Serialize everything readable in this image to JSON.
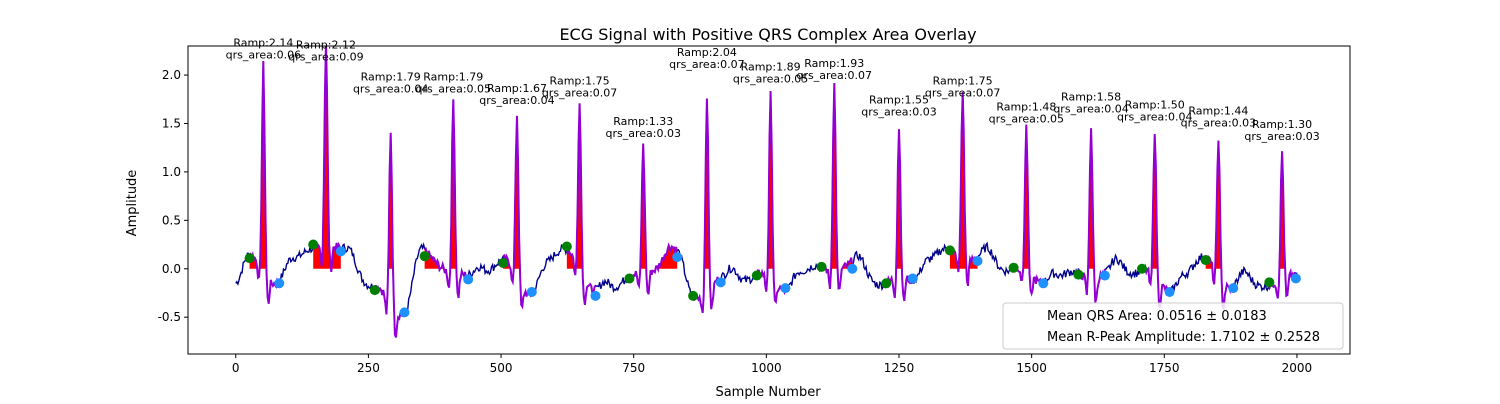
{
  "chart_data": {
    "type": "line",
    "title": "ECG Signal with Positive QRS Complex Area Overlay",
    "xlabel": "Sample Number",
    "ylabel": "Amplitude",
    "xlim": [
      -90,
      2100
    ],
    "ylim": [
      -0.88,
      2.3
    ],
    "x_ticks": [
      0,
      250,
      500,
      750,
      1000,
      1250,
      1500,
      1750,
      2000
    ],
    "y_ticks": [
      -0.5,
      0.0,
      0.5,
      1.0,
      1.5,
      2.0
    ],
    "grid": false,
    "legend_position": "lower-right",
    "legend_entries": [
      "Mean QRS Area: 0.0516 ± 0.0183",
      "Mean R-Peak Amplitude: 1.7102 ± 0.2528"
    ],
    "colors": {
      "signal": "#00008b",
      "qrs_segment": "#9400d3",
      "qrs_area": "#ff0000",
      "q_point": "#008000",
      "s_point": "#1e90ff"
    },
    "beats": [
      {
        "r_x": 52,
        "r_amp": 2.14,
        "qrs_area": 0.06,
        "q_x": 26,
        "q_y": 0.11,
        "s_x": 82,
        "s_y": -0.15
      },
      {
        "r_x": 170,
        "r_amp": 2.12,
        "qrs_area": 0.09,
        "q_x": 146,
        "q_y": 0.25,
        "s_x": 198,
        "s_y": 0.18
      },
      {
        "r_x": 292,
        "r_amp": 1.79,
        "qrs_area": 0.04,
        "q_x": 262,
        "q_y": -0.22,
        "s_x": 318,
        "s_y": -0.45
      },
      {
        "r_x": 410,
        "r_amp": 1.79,
        "qrs_area": 0.05,
        "q_x": 356,
        "q_y": 0.13,
        "s_x": 438,
        "s_y": -0.11
      },
      {
        "r_x": 530,
        "r_amp": 1.67,
        "qrs_area": 0.04,
        "q_x": 504,
        "q_y": 0.06,
        "s_x": 558,
        "s_y": -0.24
      },
      {
        "r_x": 648,
        "r_amp": 1.75,
        "qrs_area": 0.07,
        "q_x": 624,
        "q_y": 0.23,
        "s_x": 678,
        "s_y": -0.28
      },
      {
        "r_x": 768,
        "r_amp": 1.33,
        "qrs_area": 0.03,
        "q_x": 742,
        "q_y": -0.1,
        "s_x": 832,
        "s_y": 0.12
      },
      {
        "r_x": 888,
        "r_amp": 2.04,
        "qrs_area": 0.07,
        "q_x": 862,
        "q_y": -0.28,
        "s_x": 914,
        "s_y": -0.14
      },
      {
        "r_x": 1008,
        "r_amp": 1.89,
        "qrs_area": 0.05,
        "q_x": 982,
        "q_y": -0.07,
        "s_x": 1036,
        "s_y": -0.2
      },
      {
        "r_x": 1128,
        "r_amp": 1.93,
        "qrs_area": 0.07,
        "q_x": 1104,
        "q_y": 0.02,
        "s_x": 1162,
        "s_y": 0.0
      },
      {
        "r_x": 1250,
        "r_amp": 1.55,
        "qrs_area": 0.03,
        "q_x": 1226,
        "q_y": -0.15,
        "s_x": 1276,
        "s_y": -0.1
      },
      {
        "r_x": 1370,
        "r_amp": 1.75,
        "qrs_area": 0.07,
        "q_x": 1346,
        "q_y": 0.19,
        "s_x": 1398,
        "s_y": 0.08
      },
      {
        "r_x": 1490,
        "r_amp": 1.48,
        "qrs_area": 0.05,
        "q_x": 1466,
        "q_y": 0.01,
        "s_x": 1522,
        "s_y": -0.15
      },
      {
        "r_x": 1612,
        "r_amp": 1.58,
        "qrs_area": 0.04,
        "q_x": 1588,
        "q_y": -0.06,
        "s_x": 1638,
        "s_y": -0.07
      },
      {
        "r_x": 1732,
        "r_amp": 1.5,
        "qrs_area": 0.04,
        "q_x": 1708,
        "q_y": 0.0,
        "s_x": 1760,
        "s_y": -0.24
      },
      {
        "r_x": 1852,
        "r_amp": 1.44,
        "qrs_area": 0.03,
        "q_x": 1828,
        "q_y": 0.09,
        "s_x": 1880,
        "s_y": -0.2
      },
      {
        "r_x": 1972,
        "r_amp": 1.3,
        "qrs_area": 0.03,
        "q_x": 1948,
        "q_y": -0.14,
        "s_x": 1998,
        "s_y": -0.1
      }
    ],
    "label_prefix_ramp": "Ramp:",
    "label_prefix_qrs": "qrs_area:"
  }
}
